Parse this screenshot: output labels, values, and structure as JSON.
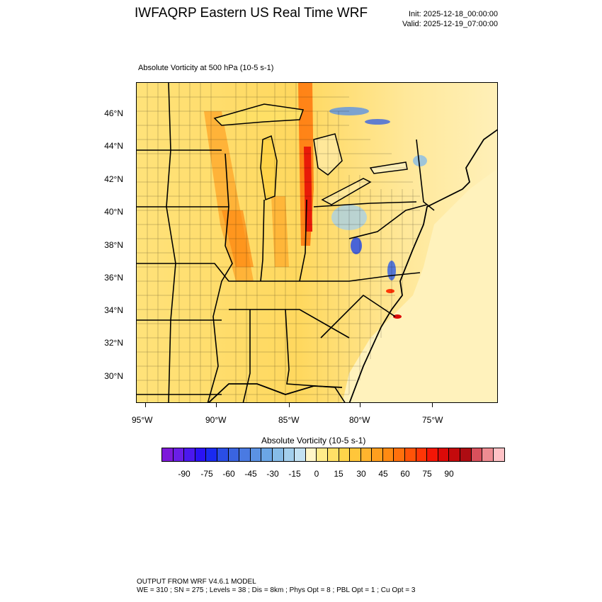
{
  "header": {
    "title": "IWFAQRP Eastern US Real Time WRF",
    "init": "Init: 2025-12-18_00:00:00",
    "valid": "Valid: 2025-12-19_07:00:00"
  },
  "field": {
    "title": "Absolute Vorticity at 500 hPa   (10-5 s-1)"
  },
  "axes": {
    "lat_labels": [
      "46°N",
      "44°N",
      "42°N",
      "40°N",
      "38°N",
      "36°N",
      "34°N",
      "32°N",
      "30°N"
    ],
    "lon_labels": [
      "95°W",
      "90°W",
      "85°W",
      "80°W",
      "75°W"
    ]
  },
  "colorbar": {
    "title": "Absolute Vorticity  (10-5 s-1)",
    "labels": [
      "-90",
      "-75",
      "-60",
      "-45",
      "-30",
      "-15",
      "0",
      "15",
      "30",
      "45",
      "60",
      "75",
      "90"
    ],
    "colors": [
      "#7d1ad9",
      "#6a1ee6",
      "#4b18ee",
      "#2a12f4",
      "#1a2af0",
      "#2a4ee6",
      "#3a64e0",
      "#4a7ae2",
      "#5b92e4",
      "#6ba6e6",
      "#86bce8",
      "#a3cfed",
      "#c3e1f2",
      "#fff6c8",
      "#ffeb8a",
      "#ffe066",
      "#ffd44a",
      "#ffc63a",
      "#ffb42e",
      "#ff9f1e",
      "#ff8a12",
      "#ff700c",
      "#ff5308",
      "#ff3606",
      "#f41606",
      "#dc0a08",
      "#c40a0c",
      "#ae0c12",
      "#d8505c",
      "#ee8c92",
      "#ffc2c6"
    ]
  },
  "footer": {
    "line1": "OUTPUT FROM WRF V4.6.1 MODEL",
    "line2": "WE = 310 ; SN = 275 ; Levels = 38 ; Dis = 8km ; Phys Opt = 8 ; PBL Opt = 1 ; Cu Opt = 3"
  }
}
